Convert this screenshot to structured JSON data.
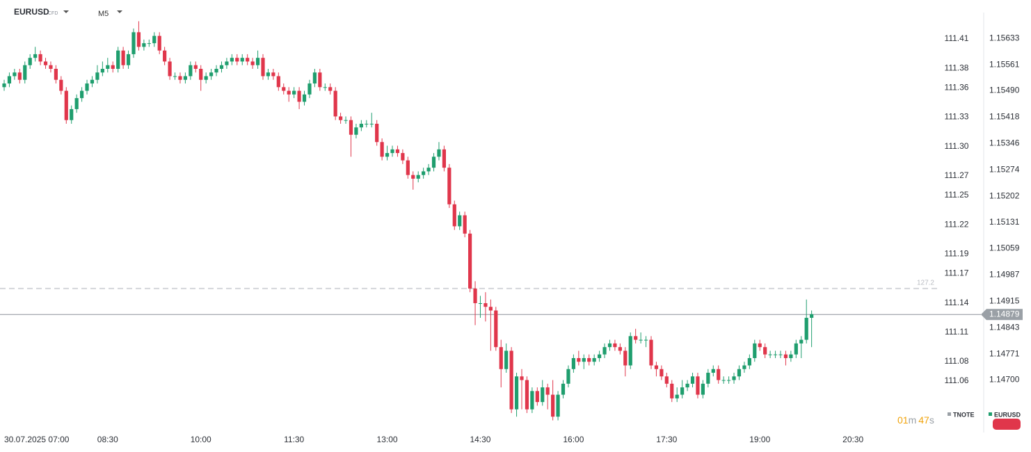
{
  "chart_data": {
    "type": "candlestick",
    "symbol": "EURUSD",
    "symbol_tag": "CFD",
    "timeframe": "M5",
    "ylim": [
      1.1457,
      1.157
    ],
    "yticks": [
      1.15633,
      1.15561,
      {
        "value": 1.1549,
        "label": "1.15490"
      },
      1.15418,
      1.15346,
      1.15274,
      1.15202,
      1.15131,
      1.15059,
      1.14987,
      1.14915,
      1.14843,
      1.14771,
      {
        "value": 1.147,
        "label": "1.14700"
      }
    ],
    "y2lim": [
      111.0124,
      111.4356
    ],
    "y2ticks": [
      111.41,
      111.38,
      111.36,
      111.33,
      {
        "value": 111.3,
        "label": "111.30"
      },
      111.27,
      111.25,
      111.22,
      111.19,
      111.17,
      111.14,
      111.11,
      111.08,
      111.06
    ],
    "xticks": [
      {
        "value": 8,
        "label": "30.07.2025  07:00"
      },
      {
        "value": 20,
        "label": "08:30"
      },
      {
        "value": 38,
        "label": "10:00"
      },
      {
        "value": 56,
        "label": "11:30"
      },
      {
        "value": 74,
        "label": "13:00"
      },
      {
        "value": 92,
        "label": "14:30"
      },
      {
        "value": 110,
        "label": "16:00"
      },
      {
        "value": 128,
        "label": "17:30"
      },
      {
        "value": 146,
        "label": "19:00"
      },
      {
        "value": 164,
        "label": "20:30"
      }
    ],
    "last_price": 1.14879,
    "reference_line": {
      "value": 1.1495,
      "label": "127.2"
    },
    "countdown": {
      "minutes": "01",
      "minutes_unit": "m",
      "seconds": "47",
      "seconds_unit": "s"
    },
    "series": [
      {
        "name": "TNOTE",
        "color": "#9aa0a6",
        "axis": "y2"
      },
      {
        "name": "EURUSD",
        "color": "#1f9e6e",
        "down_color": "#e0364b",
        "open": [
          1.155,
          1.1551,
          1.1553,
          1.1554,
          1.1552,
          1.1556,
          1.1558,
          1.1559,
          1.1557,
          1.1556,
          1.1555,
          1.1552,
          1.1549,
          1.1541,
          1.1544,
          1.1547,
          1.1549,
          1.1551,
          1.1552,
          1.1554,
          1.1555,
          1.1556,
          1.1555,
          1.156,
          1.1556,
          1.1559,
          1.1565,
          1.1561,
          1.1562,
          1.1562,
          1.1564,
          1.156,
          1.1557,
          1.1553,
          1.1553,
          1.1552,
          1.1553,
          1.1556,
          1.1555,
          1.1552,
          1.1553,
          1.1554,
          1.1555,
          1.1556,
          1.1557,
          1.1558,
          1.1557,
          1.1558,
          1.1557,
          1.1556,
          1.1558,
          1.1553,
          1.1554,
          1.1553,
          1.155,
          1.1549,
          1.1548,
          1.1549,
          1.1546,
          1.1548,
          1.1551,
          1.1554,
          1.155,
          1.155,
          1.1549,
          1.1542,
          1.1541,
          1.1541,
          1.1537,
          1.1539,
          1.154,
          1.154,
          1.154,
          1.1535,
          1.1531,
          1.1532,
          1.1533,
          1.1532,
          1.153,
          1.1526,
          1.1525,
          1.1526,
          1.1527,
          1.1528,
          1.1531,
          1.1533,
          1.1528,
          1.1518,
          1.1512,
          1.1515,
          1.151,
          1.1495,
          1.1491,
          1.1491,
          1.149,
          1.1489,
          1.1479,
          1.1473,
          1.1478,
          1.1462,
          1.1471,
          1.147,
          1.1462,
          1.1467,
          1.1464,
          1.1468,
          1.1466,
          1.146,
          1.1466,
          1.1469,
          1.1473,
          1.1476,
          1.1475,
          1.1476,
          1.1475,
          1.1476,
          1.1477,
          1.1479,
          1.148,
          1.1479,
          1.1478,
          1.1474,
          1.1482,
          1.1481,
          1.1481,
          1.1481,
          1.1474,
          1.1473,
          1.1471,
          1.1469,
          1.1465,
          1.1466,
          1.1468,
          1.1469,
          1.1471,
          1.1466,
          1.1469,
          1.1472,
          1.1473,
          1.147,
          1.147,
          1.147,
          1.1471,
          1.1473,
          1.1474,
          1.1476,
          1.148,
          1.1479,
          1.1477,
          1.1477,
          1.1477,
          1.1477,
          1.1476,
          1.1477,
          1.148,
          1.1481,
          1.1487
        ],
        "high": [
          1.1552,
          1.1554,
          1.1555,
          1.1555,
          1.1557,
          1.1559,
          1.1561,
          1.156,
          1.1558,
          1.1557,
          1.1556,
          1.1553,
          1.155,
          1.1545,
          1.1548,
          1.155,
          1.1552,
          1.1553,
          1.1556,
          1.1557,
          1.1558,
          1.1557,
          1.1561,
          1.1561,
          1.156,
          1.1566,
          1.1568,
          1.1563,
          1.1563,
          1.1565,
          1.1565,
          1.1561,
          1.1558,
          1.1554,
          1.1554,
          1.1554,
          1.1557,
          1.1557,
          1.1556,
          1.1554,
          1.1555,
          1.1556,
          1.1557,
          1.1558,
          1.1559,
          1.1559,
          1.1559,
          1.1559,
          1.1558,
          1.156,
          1.1559,
          1.1555,
          1.1555,
          1.1554,
          1.1551,
          1.155,
          1.155,
          1.155,
          1.1549,
          1.1552,
          1.1555,
          1.1555,
          1.1551,
          1.1551,
          1.155,
          1.1543,
          1.1542,
          1.1542,
          1.154,
          1.1541,
          1.1541,
          1.1543,
          1.1541,
          1.1536,
          1.1534,
          1.1534,
          1.1534,
          1.1533,
          1.1531,
          1.1527,
          1.1527,
          1.1528,
          1.1529,
          1.1532,
          1.1535,
          1.1534,
          1.1529,
          1.1519,
          1.1516,
          1.1516,
          1.1511,
          1.1497,
          1.1493,
          1.1494,
          1.1492,
          1.149,
          1.1481,
          1.148,
          1.1479,
          1.1472,
          1.1473,
          1.1471,
          1.1468,
          1.1468,
          1.147,
          1.1469,
          1.147,
          1.1467,
          1.147,
          1.1474,
          1.1477,
          1.1478,
          1.1477,
          1.1477,
          1.1477,
          1.1478,
          1.148,
          1.1481,
          1.1481,
          1.148,
          1.1479,
          1.1483,
          1.1484,
          1.1483,
          1.1482,
          1.1482,
          1.1475,
          1.1474,
          1.1472,
          1.147,
          1.1468,
          1.147,
          1.147,
          1.1472,
          1.1472,
          1.147,
          1.1473,
          1.1474,
          1.1474,
          1.1471,
          1.1471,
          1.1472,
          1.1474,
          1.1475,
          1.1477,
          1.1481,
          1.1481,
          1.148,
          1.1478,
          1.1478,
          1.1478,
          1.1478,
          1.1478,
          1.1481,
          1.1482,
          1.1492,
          1.1489
        ],
        "low": [
          1.1549,
          1.155,
          1.1552,
          1.1551,
          1.1551,
          1.1555,
          1.1557,
          1.1556,
          1.1555,
          1.1554,
          1.1551,
          1.1548,
          1.154,
          1.154,
          1.1543,
          1.1546,
          1.1548,
          1.155,
          1.1551,
          1.1553,
          1.1554,
          1.1554,
          1.1554,
          1.1555,
          1.1555,
          1.1558,
          1.156,
          1.156,
          1.1561,
          1.1561,
          1.1559,
          1.1556,
          1.1552,
          1.1552,
          1.1551,
          1.1551,
          1.1552,
          1.1554,
          1.1549,
          1.1551,
          1.1552,
          1.1553,
          1.1554,
          1.1555,
          1.1556,
          1.1556,
          1.1556,
          1.1556,
          1.1555,
          1.1555,
          1.1552,
          1.1552,
          1.1552,
          1.1549,
          1.1548,
          1.1546,
          1.1547,
          1.1544,
          1.1545,
          1.1547,
          1.155,
          1.1549,
          1.1549,
          1.1548,
          1.1541,
          1.154,
          1.154,
          1.1531,
          1.1536,
          1.1538,
          1.1539,
          1.1539,
          1.1534,
          1.153,
          1.153,
          1.1531,
          1.1531,
          1.1529,
          1.1525,
          1.1522,
          1.1524,
          1.1525,
          1.1526,
          1.1527,
          1.153,
          1.1527,
          1.1517,
          1.1511,
          1.1511,
          1.1509,
          1.1494,
          1.1485,
          1.1487,
          1.1486,
          1.1478,
          1.1478,
          1.1468,
          1.1472,
          1.1461,
          1.146,
          1.1462,
          1.1461,
          1.1461,
          1.1463,
          1.1463,
          1.1462,
          1.1459,
          1.1459,
          1.1465,
          1.1468,
          1.1472,
          1.1474,
          1.1473,
          1.1474,
          1.1474,
          1.1475,
          1.1476,
          1.1478,
          1.1478,
          1.1477,
          1.1471,
          1.1473,
          1.148,
          1.148,
          1.1479,
          1.1473,
          1.1471,
          1.147,
          1.1468,
          1.1464,
          1.1464,
          1.1465,
          1.1467,
          1.1468,
          1.1465,
          1.1465,
          1.1468,
          1.1471,
          1.1469,
          1.1469,
          1.1469,
          1.1469,
          1.147,
          1.1472,
          1.1473,
          1.1475,
          1.1478,
          1.1476,
          1.1476,
          1.1476,
          1.1476,
          1.1474,
          1.1475,
          1.1476,
          1.1476,
          1.148,
          1.1479
        ],
        "close": [
          1.1551,
          1.1553,
          1.1554,
          1.1552,
          1.1556,
          1.1558,
          1.1559,
          1.1557,
          1.1556,
          1.1555,
          1.1552,
          1.1549,
          1.1541,
          1.1544,
          1.1547,
          1.1549,
          1.1551,
          1.1552,
          1.1554,
          1.1555,
          1.1556,
          1.1555,
          1.156,
          1.1556,
          1.1559,
          1.1565,
          1.1561,
          1.1562,
          1.1562,
          1.1564,
          1.156,
          1.1557,
          1.1553,
          1.1553,
          1.1552,
          1.1553,
          1.1556,
          1.1555,
          1.1552,
          1.1553,
          1.1554,
          1.1555,
          1.1556,
          1.1557,
          1.1558,
          1.1557,
          1.1558,
          1.1557,
          1.1556,
          1.1558,
          1.1553,
          1.1554,
          1.1553,
          1.155,
          1.1549,
          1.1548,
          1.1549,
          1.1546,
          1.1548,
          1.1551,
          1.1554,
          1.155,
          1.155,
          1.1549,
          1.1542,
          1.1541,
          1.1541,
          1.1537,
          1.1539,
          1.154,
          1.154,
          1.154,
          1.1535,
          1.1531,
          1.1532,
          1.1533,
          1.1532,
          1.153,
          1.1526,
          1.1525,
          1.1526,
          1.1527,
          1.1528,
          1.1531,
          1.1533,
          1.1528,
          1.1518,
          1.1512,
          1.1515,
          1.151,
          1.1495,
          1.1491,
          1.1491,
          1.149,
          1.1489,
          1.1479,
          1.1473,
          1.1478,
          1.1462,
          1.1471,
          1.147,
          1.1462,
          1.1467,
          1.1464,
          1.1468,
          1.1466,
          1.146,
          1.1466,
          1.1469,
          1.1473,
          1.1476,
          1.1475,
          1.1476,
          1.1475,
          1.1476,
          1.1477,
          1.1479,
          1.148,
          1.1479,
          1.1478,
          1.1474,
          1.1482,
          1.1481,
          1.1481,
          1.1481,
          1.1474,
          1.1473,
          1.1471,
          1.1469,
          1.1465,
          1.1466,
          1.1468,
          1.1469,
          1.1471,
          1.1466,
          1.1469,
          1.1472,
          1.1473,
          1.147,
          1.147,
          1.147,
          1.1471,
          1.1473,
          1.1474,
          1.1476,
          1.148,
          1.1479,
          1.1477,
          1.1477,
          1.1477,
          1.1477,
          1.1476,
          1.1477,
          1.148,
          1.1481,
          1.1487,
          1.1488
        ]
      }
    ]
  }
}
